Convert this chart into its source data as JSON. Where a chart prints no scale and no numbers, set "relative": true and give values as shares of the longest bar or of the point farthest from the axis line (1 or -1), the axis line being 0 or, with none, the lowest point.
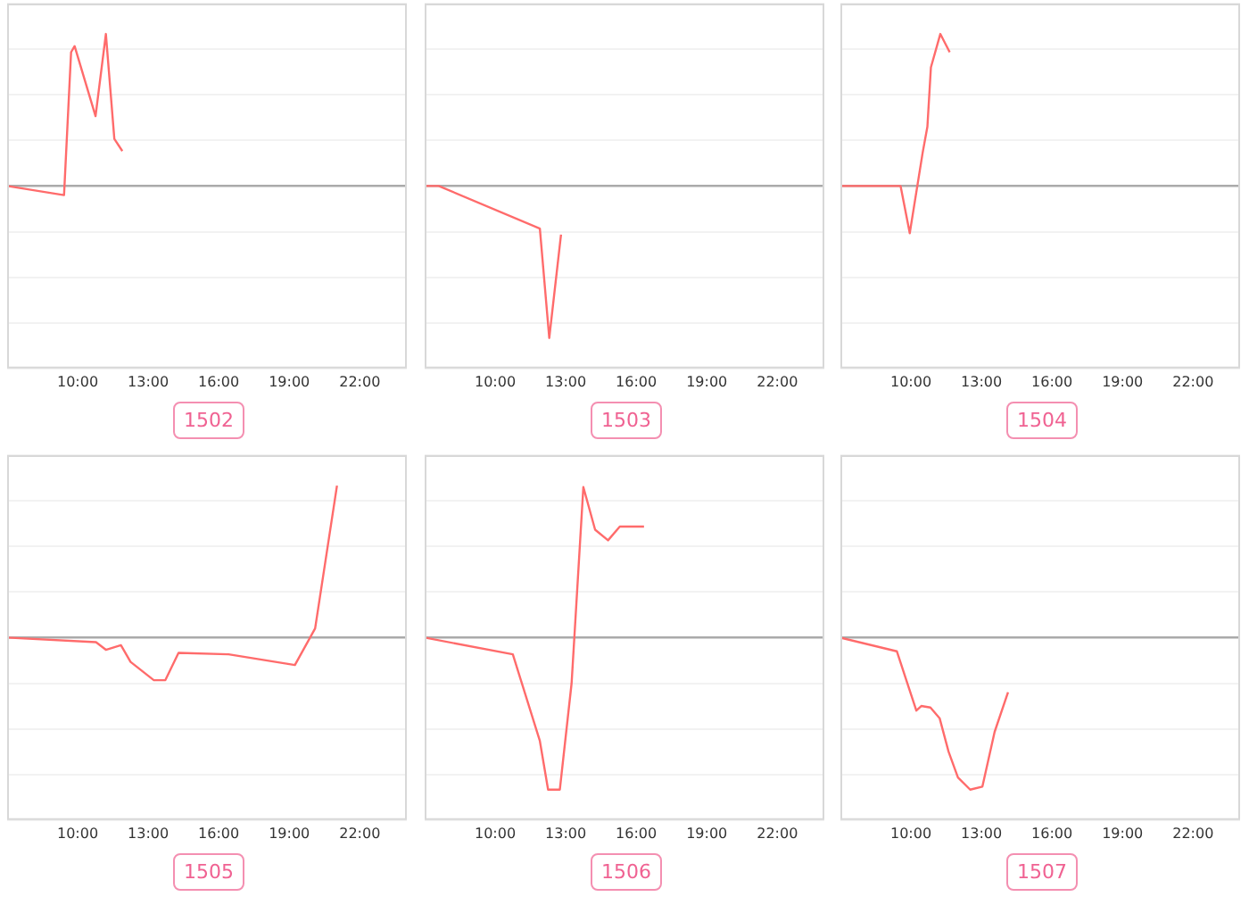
{
  "chart_data": [
    {
      "type": "line",
      "title": "1502",
      "relative": true,
      "grid": "y",
      "tick_labels": "x",
      "color": "#ff6b6b",
      "xlim": [
        7,
        24
      ],
      "xticks": [
        {
          "value": 10,
          "label": "10:00"
        },
        {
          "value": 13,
          "label": "13:00"
        },
        {
          "value": 16,
          "label": "16:00"
        },
        {
          "value": 19,
          "label": "19:00"
        },
        {
          "value": 22,
          "label": "22:00"
        }
      ],
      "x": [
        7.0,
        9.42,
        9.72,
        9.87,
        10.76,
        11.2,
        11.56,
        11.9
      ],
      "values": [
        0,
        -0.06,
        0.88,
        0.92,
        0.46,
        1,
        0.31,
        0.23
      ]
    },
    {
      "type": "line",
      "title": "1503",
      "relative": true,
      "grid": "y",
      "tick_labels": "x",
      "color": "#ff6b6b",
      "xlim": [
        7,
        24
      ],
      "xticks": [
        {
          "value": 10,
          "label": "10:00"
        },
        {
          "value": 13,
          "label": "13:00"
        },
        {
          "value": 16,
          "label": "16:00"
        },
        {
          "value": 19,
          "label": "19:00"
        },
        {
          "value": 22,
          "label": "22:00"
        }
      ],
      "x": [
        7.0,
        7.6,
        11.9,
        12.3,
        12.8
      ],
      "values": [
        0,
        0,
        -0.28,
        -1,
        -0.32
      ]
    },
    {
      "type": "line",
      "title": "1504",
      "relative": true,
      "grid": "y",
      "tick_labels": "x",
      "color": "#ff6b6b",
      "xlim": [
        7,
        24
      ],
      "xticks": [
        {
          "value": 10,
          "label": "10:00"
        },
        {
          "value": 13,
          "label": "13:00"
        },
        {
          "value": 16,
          "label": "16:00"
        },
        {
          "value": 19,
          "label": "19:00"
        },
        {
          "value": 22,
          "label": "22:00"
        }
      ],
      "x": [
        7.0,
        9.56,
        9.95,
        10.5,
        10.7,
        10.85,
        11.25,
        11.65
      ],
      "values": [
        0,
        0,
        -0.31,
        0.22,
        0.39,
        0.78,
        1,
        0.88
      ]
    },
    {
      "type": "line",
      "title": "1505",
      "relative": true,
      "grid": "y",
      "tick_labels": "x",
      "color": "#ff6b6b",
      "xlim": [
        7,
        24
      ],
      "xticks": [
        {
          "value": 10,
          "label": "10:00"
        },
        {
          "value": 13,
          "label": "13:00"
        },
        {
          "value": 16,
          "label": "16:00"
        },
        {
          "value": 19,
          "label": "19:00"
        },
        {
          "value": 22,
          "label": "22:00"
        }
      ],
      "x": [
        7.0,
        10.78,
        11.2,
        11.84,
        12.25,
        13.24,
        13.73,
        14.29,
        16.42,
        19.24,
        20.1,
        21.03
      ],
      "values": [
        0,
        -0.03,
        -0.08,
        -0.05,
        -0.16,
        -0.28,
        -0.28,
        -0.1,
        -0.11,
        -0.18,
        0.06,
        1
      ]
    },
    {
      "type": "line",
      "title": "1506",
      "relative": true,
      "grid": "y",
      "tick_labels": "x",
      "color": "#ff6b6b",
      "xlim": [
        7,
        24
      ],
      "xticks": [
        {
          "value": 10,
          "label": "10:00"
        },
        {
          "value": 13,
          "label": "13:00"
        },
        {
          "value": 16,
          "label": "16:00"
        },
        {
          "value": 19,
          "label": "19:00"
        },
        {
          "value": 22,
          "label": "22:00"
        }
      ],
      "x": [
        7.0,
        10.75,
        11.9,
        12.25,
        12.75,
        13.25,
        13.75,
        14.25,
        14.8,
        15.3,
        16.33
      ],
      "values": [
        0,
        -0.11,
        -0.68,
        -1,
        -1,
        -0.3,
        0.99,
        0.71,
        0.64,
        0.73,
        0.73
      ]
    },
    {
      "type": "line",
      "title": "1507",
      "relative": true,
      "grid": "y",
      "tick_labels": "x",
      "color": "#ff6b6b",
      "xlim": [
        7,
        24
      ],
      "xticks": [
        {
          "value": 10,
          "label": "10:00"
        },
        {
          "value": 13,
          "label": "13:00"
        },
        {
          "value": 16,
          "label": "16:00"
        },
        {
          "value": 19,
          "label": "19:00"
        },
        {
          "value": 22,
          "label": "22:00"
        }
      ],
      "x": [
        7.0,
        9.4,
        10.23,
        10.44,
        10.83,
        11.22,
        11.6,
        12.0,
        12.52,
        13.04,
        13.56,
        14.13
      ],
      "values": [
        0,
        -0.09,
        -0.48,
        -0.45,
        -0.46,
        -0.53,
        -0.75,
        -0.92,
        -1,
        -0.98,
        -0.62,
        -0.36
      ]
    }
  ]
}
